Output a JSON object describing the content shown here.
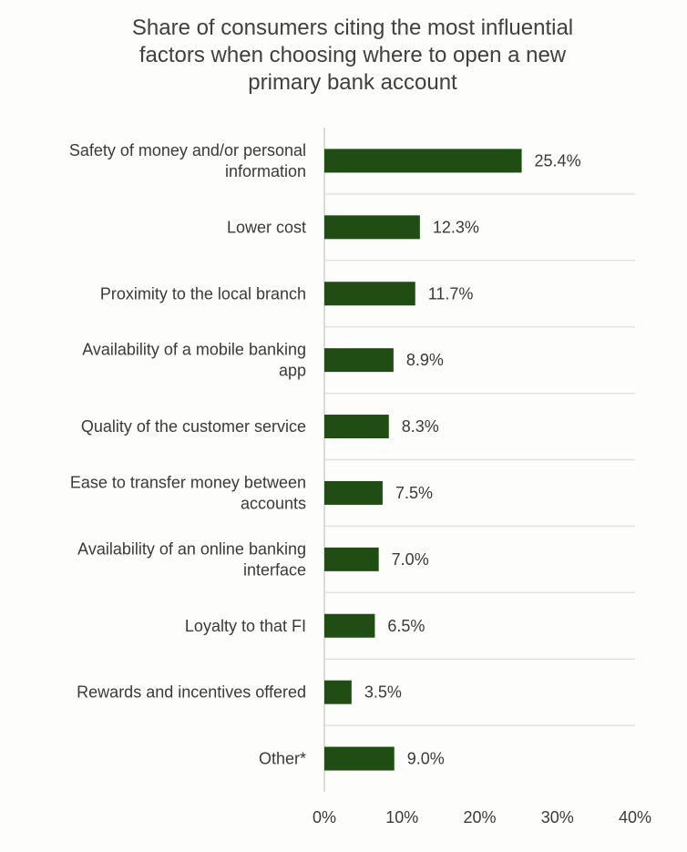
{
  "chart_data": {
    "type": "bar",
    "orientation": "horizontal",
    "title_lines": [
      "Share of consumers citing the most influential",
      "factors when choosing where to open a new",
      "primary bank account"
    ],
    "categories": [
      [
        "Safety of money and/or personal",
        "information"
      ],
      [
        "Lower cost"
      ],
      [
        "Proximity to the local branch"
      ],
      [
        "Availability of a mobile banking",
        "app"
      ],
      [
        "Quality of the customer service"
      ],
      [
        "Ease to transfer money between",
        "accounts"
      ],
      [
        "Availability of an online banking",
        "interface"
      ],
      [
        "Loyalty to that FI"
      ],
      [
        "Rewards and incentives offered"
      ],
      [
        "Other*"
      ]
    ],
    "values": [
      25.4,
      12.3,
      11.7,
      8.9,
      8.3,
      7.5,
      7.0,
      6.5,
      3.5,
      9.0
    ],
    "value_labels": [
      "25.4%",
      "12.3%",
      "11.7%",
      "8.9%",
      "8.3%",
      "7.5%",
      "7.0%",
      "6.5%",
      "3.5%",
      "9.0%"
    ],
    "xlim": [
      0,
      40
    ],
    "x_ticks": [
      0,
      10,
      20,
      30,
      40
    ],
    "x_tick_labels": [
      "0%",
      "10%",
      "20%",
      "30%",
      "40%"
    ],
    "grid": "horizontal row separators",
    "legend": "none",
    "colors": {
      "bar": "#1f4d13",
      "separator": "#e2e2e2",
      "axis": "#d0d0d0",
      "text": "#3a3a3a",
      "background": "#fdfdfb"
    }
  }
}
